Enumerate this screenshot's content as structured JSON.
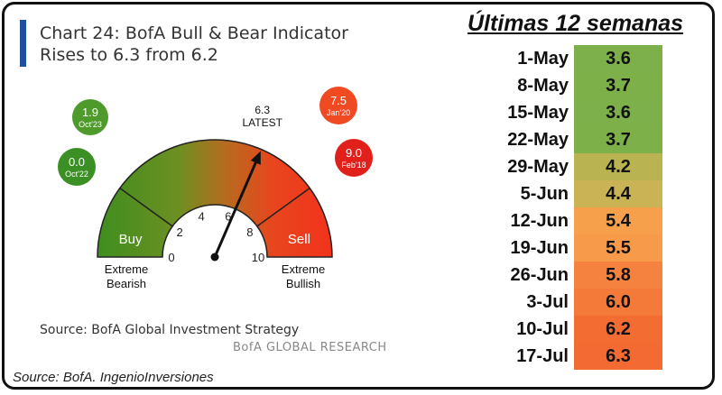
{
  "left": {
    "title_line1": "Chart 24: BofA Bull & Bear Indicator",
    "title_line2": "Rises to 6.3 from 6.2",
    "source": "Source: BofA Global Investment Strategy",
    "brand": "BofA GLOBAL RESEARCH"
  },
  "bottom_source": "Source: BofA. IngenioInversiones",
  "chart_data": [
    {
      "type": "gauge",
      "title": "Chart 24: BofA Bull & Bear Indicator",
      "subtitle": "Rises to 6.3 from 6.2",
      "range": [
        0,
        10
      ],
      "ticks": [
        0,
        2,
        4,
        6,
        8,
        10
      ],
      "value": 6.3,
      "value_label": "6.3",
      "value_caption": "LATEST",
      "zones": [
        {
          "label": "Buy",
          "from": 0,
          "to": 2
        },
        {
          "label": "Sell",
          "from": 8,
          "to": 10
        }
      ],
      "extremes": {
        "low_label_1": "Extreme",
        "low_label_2": "Bearish",
        "high_label_1": "Extreme",
        "high_label_2": "Bullish"
      },
      "reference_points": [
        {
          "value": "1.9",
          "date": "Oct'23",
          "color": "#4e9a2a",
          "side": "left"
        },
        {
          "value": "0.0",
          "date": "Oct'22",
          "color": "#3b8f24",
          "side": "left"
        },
        {
          "value": "7.5",
          "date": "Jan'20",
          "color": "#f04a23",
          "side": "right"
        },
        {
          "value": "9.0",
          "date": "Feb'18",
          "color": "#e2201b",
          "side": "right"
        }
      ]
    },
    {
      "type": "table",
      "title": "Últimas 12 semanas",
      "rows": [
        {
          "date": "1-May",
          "value": "3.6",
          "color": "#7db04a"
        },
        {
          "date": "8-May",
          "value": "3.7",
          "color": "#7eb049"
        },
        {
          "date": "15-May",
          "value": "3.6",
          "color": "#7db04a"
        },
        {
          "date": "22-May",
          "value": "3.7",
          "color": "#7eb049"
        },
        {
          "date": "29-May",
          "value": "4.2",
          "color": "#b9b451"
        },
        {
          "date": "5-Jun",
          "value": "4.4",
          "color": "#c9b354"
        },
        {
          "date": "12-Jun",
          "value": "5.4",
          "color": "#f7a04c"
        },
        {
          "date": "19-Jun",
          "value": "5.5",
          "color": "#f79a4a"
        },
        {
          "date": "26-Jun",
          "value": "5.8",
          "color": "#f5833f"
        },
        {
          "date": "3-Jul",
          "value": "6.0",
          "color": "#f47a39"
        },
        {
          "date": "10-Jul",
          "value": "6.2",
          "color": "#f36d33"
        },
        {
          "date": "17-Jul",
          "value": "6.3",
          "color": "#f36a32"
        }
      ]
    }
  ]
}
